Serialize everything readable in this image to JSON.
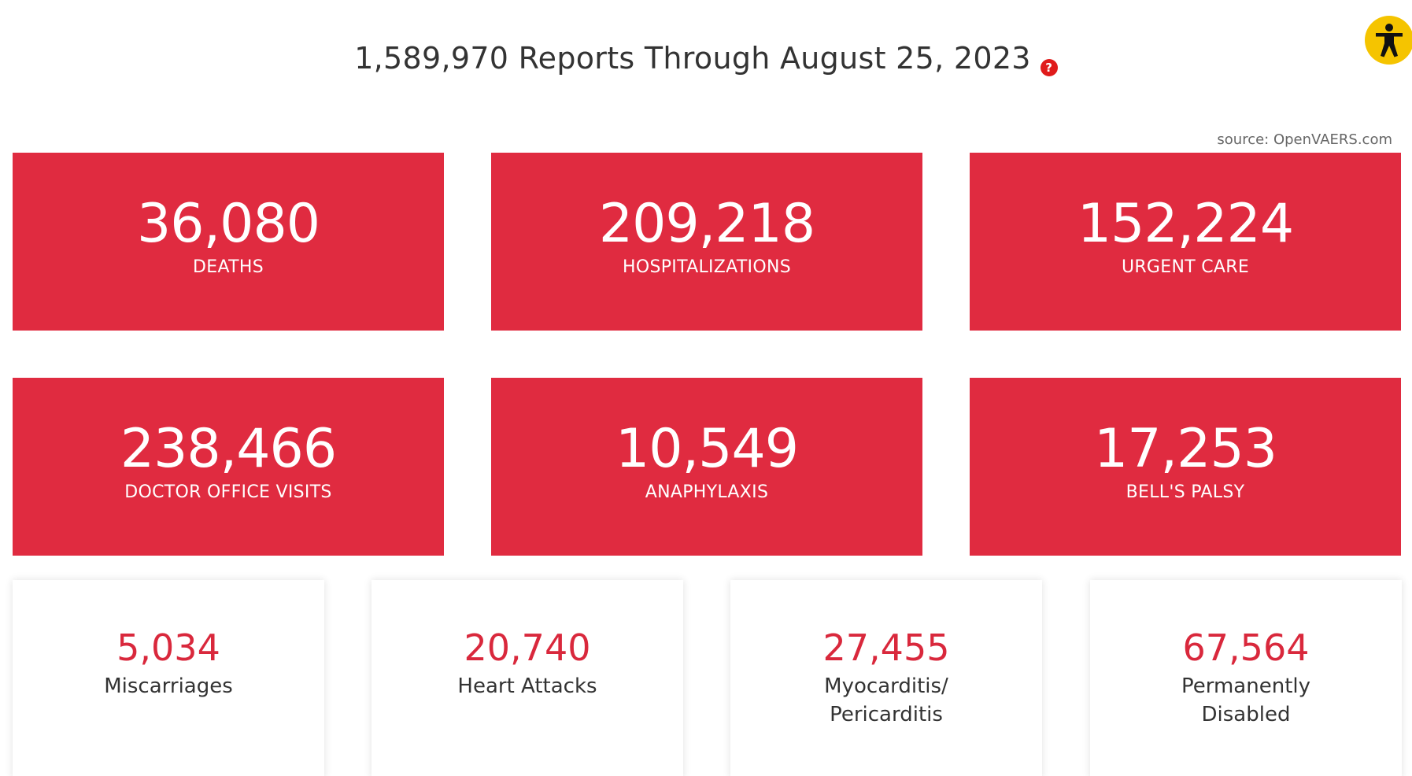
{
  "header": {
    "title": "1,589,970 Reports Through August 25, 2023",
    "help_icon": "?",
    "source": "source: OpenVAERS.com"
  },
  "accessibility": {
    "icon": "accessibility-person-icon",
    "color": "#f5c400"
  },
  "colors": {
    "accent": "#e02b40",
    "number_red": "#d9283c"
  },
  "stats_primary": [
    {
      "value": "36,080",
      "label": "DEATHS"
    },
    {
      "value": "209,218",
      "label": "HOSPITALIZATIONS"
    },
    {
      "value": "152,224",
      "label": "URGENT CARE"
    },
    {
      "value": "238,466",
      "label": "DOCTOR OFFICE VISITS"
    },
    {
      "value": "10,549",
      "label": "ANAPHYLAXIS"
    },
    {
      "value": "17,253",
      "label": "BELL'S PALSY"
    }
  ],
  "stats_secondary": [
    {
      "value": "5,034",
      "label": "Miscarriages"
    },
    {
      "value": "20,740",
      "label": "Heart Attacks"
    },
    {
      "value": "27,455",
      "label": "Myocarditis/ Pericarditis"
    },
    {
      "value": "67,564",
      "label": "Permanently Disabled"
    }
  ]
}
